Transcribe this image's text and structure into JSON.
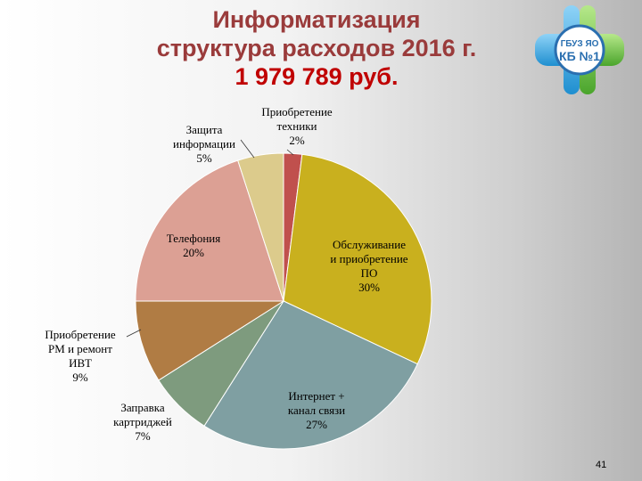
{
  "title": {
    "line1": "Информатизация",
    "line2": "структура расходов 2016 г.",
    "line3": "1 979 789 руб."
  },
  "logo": {
    "line1": "ГБУЗ ЯО",
    "line2": "КБ №1",
    "colors": {
      "cross_left": "#3fa9e0",
      "cross_right": "#6cc24a",
      "ring": "#2a6fb0"
    }
  },
  "page_number": "41",
  "chart_data": {
    "type": "pie",
    "title": "",
    "start_angle_deg": 0,
    "direction": "clockwise",
    "slices": [
      {
        "label_lines": [
          "Приобретение",
          "техники",
          "2%"
        ],
        "value": 2,
        "color": "#c0504d"
      },
      {
        "label_lines": [
          "Обслуживание",
          "и приобретение",
          "ПО",
          "30%"
        ],
        "value": 30,
        "color": "#c9b01e"
      },
      {
        "label_lines": [
          "Интернет +",
          "канал связи",
          "27%"
        ],
        "value": 27,
        "color": "#7f9fa2"
      },
      {
        "label_lines": [
          "Заправка",
          "картриджей",
          "7%"
        ],
        "value": 7,
        "color": "#7e9b7e"
      },
      {
        "label_lines": [
          "Приобретение",
          "РМ и ремонт",
          "ИВТ",
          "9%"
        ],
        "value": 9,
        "color": "#b07c44"
      },
      {
        "label_lines": [
          "Телефония",
          "20%"
        ],
        "value": 20,
        "color": "#dca094"
      },
      {
        "label_lines": [
          "Защита",
          "информации",
          "5%"
        ],
        "value": 5,
        "color": "#dccb8c"
      }
    ]
  }
}
